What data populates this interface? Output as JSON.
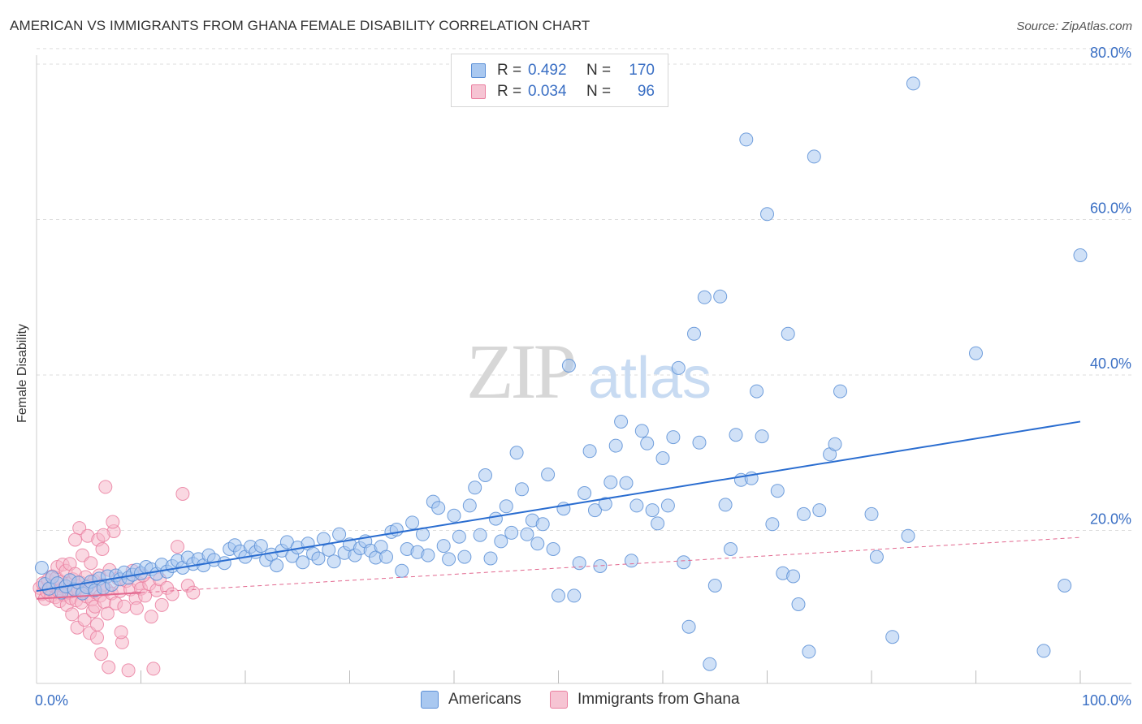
{
  "title": "AMERICAN VS IMMIGRANTS FROM GHANA FEMALE DISABILITY CORRELATION CHART",
  "source": "Source: ZipAtlas.com",
  "watermark": {
    "zip": "ZIP",
    "atlas": "atlas"
  },
  "legend": {
    "americans": {
      "r_label": "R =",
      "r_value": "0.492",
      "n_label": "N =",
      "n_value": "170"
    },
    "ghana": {
      "r_label": "R =",
      "r_value": "0.034",
      "n_label": "N =",
      "n_value": "96"
    }
  },
  "bottom_legend": {
    "americans": "Americans",
    "ghana": "Immigrants from Ghana"
  },
  "colors": {
    "americans_fill": "#a9c8f0",
    "americans_stroke": "#5b8fd6",
    "americans_line": "#2a6dd0",
    "ghana_fill": "#f6b8cb",
    "ghana_stroke": "#ea7fa0",
    "ghana_line": "#e2688f",
    "tick_label": "#3a6fc4",
    "grid": "#dddddd"
  },
  "chart_data": {
    "type": "scatter",
    "title": "AMERICAN VS IMMIGRANTS FROM GHANA FEMALE DISABILITY CORRELATION CHART",
    "xlabel": "",
    "ylabel": "Female Disability",
    "xlim": [
      0,
      100
    ],
    "ylim": [
      0,
      82
    ],
    "x_tick_labels": [
      {
        "value": 0,
        "label": "0.0%"
      },
      {
        "value": 100,
        "label": "100.0%"
      }
    ],
    "y_tick_labels": [
      {
        "value": 20,
        "label": "20.0%"
      },
      {
        "value": 40,
        "label": "40.0%"
      },
      {
        "value": 60,
        "label": "60.0%"
      },
      {
        "value": 80,
        "label": "80.0%"
      }
    ],
    "series": [
      {
        "name": "Americans",
        "trend": {
          "x": [
            0,
            100
          ],
          "y": [
            12.2,
            34.0
          ]
        },
        "points": [
          [
            0.5,
            15.2
          ],
          [
            0.8,
            13.1
          ],
          [
            1.2,
            12.5
          ],
          [
            1.5,
            14.0
          ],
          [
            2.0,
            13.2
          ],
          [
            2.4,
            12.0
          ],
          [
            2.8,
            12.8
          ],
          [
            3.2,
            13.6
          ],
          [
            3.6,
            12.4
          ],
          [
            4.0,
            13.3
          ],
          [
            4.4,
            11.9
          ],
          [
            4.8,
            12.7
          ],
          [
            5.2,
            13.4
          ],
          [
            5.6,
            12.3
          ],
          [
            6.0,
            13.8
          ],
          [
            6.4,
            12.6
          ],
          [
            6.8,
            14.1
          ],
          [
            7.2,
            13.0
          ],
          [
            7.6,
            14.2
          ],
          [
            8.0,
            13.7
          ],
          [
            8.4,
            14.6
          ],
          [
            8.8,
            13.9
          ],
          [
            9.2,
            14.3
          ],
          [
            9.6,
            14.9
          ],
          [
            10.0,
            14.5
          ],
          [
            10.5,
            15.3
          ],
          [
            11.0,
            15.0
          ],
          [
            11.5,
            14.4
          ],
          [
            12.0,
            15.6
          ],
          [
            12.5,
            14.7
          ],
          [
            13.0,
            15.4
          ],
          [
            13.5,
            16.1
          ],
          [
            14.0,
            15.2
          ],
          [
            14.5,
            16.5
          ],
          [
            15.0,
            15.7
          ],
          [
            15.5,
            16.3
          ],
          [
            16.0,
            15.5
          ],
          [
            16.5,
            16.8
          ],
          [
            17.0,
            16.2
          ],
          [
            18.0,
            15.8
          ],
          [
            18.5,
            17.6
          ],
          [
            19.0,
            18.1
          ],
          [
            19.5,
            17.3
          ],
          [
            20.0,
            16.6
          ],
          [
            20.5,
            17.9
          ],
          [
            21.0,
            17.2
          ],
          [
            21.5,
            18.0
          ],
          [
            22.0,
            16.2
          ],
          [
            22.5,
            16.9
          ],
          [
            23.0,
            15.5
          ],
          [
            23.5,
            17.4
          ],
          [
            24.0,
            18.5
          ],
          [
            24.5,
            16.7
          ],
          [
            25.0,
            17.8
          ],
          [
            25.5,
            15.9
          ],
          [
            26.0,
            18.3
          ],
          [
            26.5,
            17.0
          ],
          [
            27.0,
            16.4
          ],
          [
            27.5,
            18.9
          ],
          [
            28.0,
            17.5
          ],
          [
            28.5,
            16.0
          ],
          [
            29.0,
            19.5
          ],
          [
            29.5,
            17.1
          ],
          [
            30.0,
            18.2
          ],
          [
            30.5,
            16.8
          ],
          [
            31.0,
            17.7
          ],
          [
            31.5,
            18.6
          ],
          [
            32.0,
            17.4
          ],
          [
            32.5,
            16.5
          ],
          [
            33.0,
            17.9
          ],
          [
            33.5,
            16.6
          ],
          [
            34.0,
            19.8
          ],
          [
            34.5,
            20.1
          ],
          [
            35.0,
            14.8
          ],
          [
            35.5,
            17.6
          ],
          [
            36.0,
            21.0
          ],
          [
            36.5,
            17.2
          ],
          [
            37.0,
            19.5
          ],
          [
            37.5,
            16.8
          ],
          [
            38.0,
            23.7
          ],
          [
            38.5,
            22.9
          ],
          [
            39.0,
            18.0
          ],
          [
            39.5,
            16.3
          ],
          [
            40.0,
            21.9
          ],
          [
            40.5,
            19.2
          ],
          [
            41.0,
            16.6
          ],
          [
            41.5,
            23.2
          ],
          [
            42.0,
            25.5
          ],
          [
            42.5,
            19.4
          ],
          [
            43.0,
            27.1
          ],
          [
            43.5,
            16.4
          ],
          [
            44.0,
            21.5
          ],
          [
            44.5,
            18.6
          ],
          [
            45.0,
            23.1
          ],
          [
            45.5,
            19.7
          ],
          [
            46.0,
            30.0
          ],
          [
            46.5,
            25.3
          ],
          [
            47.0,
            19.5
          ],
          [
            47.5,
            21.3
          ],
          [
            48.0,
            18.3
          ],
          [
            48.5,
            20.8
          ],
          [
            49.0,
            27.2
          ],
          [
            49.5,
            17.6
          ],
          [
            50.0,
            11.6
          ],
          [
            50.5,
            22.8
          ],
          [
            51.0,
            41.2
          ],
          [
            51.5,
            11.6
          ],
          [
            52.0,
            15.8
          ],
          [
            52.5,
            24.8
          ],
          [
            53.0,
            30.2
          ],
          [
            53.5,
            22.6
          ],
          [
            54.0,
            15.4
          ],
          [
            54.5,
            23.4
          ],
          [
            55.0,
            26.2
          ],
          [
            55.5,
            30.9
          ],
          [
            56.0,
            34.0
          ],
          [
            56.5,
            26.1
          ],
          [
            57.0,
            16.1
          ],
          [
            57.5,
            23.2
          ],
          [
            58.0,
            32.8
          ],
          [
            58.5,
            31.2
          ],
          [
            59.0,
            22.6
          ],
          [
            59.5,
            20.9
          ],
          [
            60.0,
            29.3
          ],
          [
            60.5,
            23.2
          ],
          [
            61.0,
            32.0
          ],
          [
            61.5,
            40.9
          ],
          [
            62.0,
            15.9
          ],
          [
            62.5,
            7.6
          ],
          [
            63.0,
            45.3
          ],
          [
            63.5,
            31.3
          ],
          [
            64.0,
            50.0
          ],
          [
            64.5,
            2.8
          ],
          [
            65.0,
            12.9
          ],
          [
            65.5,
            50.1
          ],
          [
            66.0,
            23.3
          ],
          [
            66.5,
            17.6
          ],
          [
            67.0,
            32.3
          ],
          [
            67.5,
            26.5
          ],
          [
            68.0,
            70.3
          ],
          [
            68.5,
            26.7
          ],
          [
            69.0,
            37.9
          ],
          [
            69.5,
            32.1
          ],
          [
            70.0,
            60.7
          ],
          [
            70.5,
            20.8
          ],
          [
            71.0,
            25.1
          ],
          [
            71.5,
            14.5
          ],
          [
            72.0,
            45.3
          ],
          [
            72.5,
            14.1
          ],
          [
            73.0,
            10.5
          ],
          [
            73.5,
            22.1
          ],
          [
            74.0,
            4.4
          ],
          [
            74.5,
            68.1
          ],
          [
            75.0,
            22.6
          ],
          [
            76.0,
            29.8
          ],
          [
            76.5,
            31.1
          ],
          [
            77.0,
            37.9
          ],
          [
            80.0,
            22.1
          ],
          [
            80.5,
            16.6
          ],
          [
            82.0,
            6.3
          ],
          [
            83.5,
            19.3
          ],
          [
            84.0,
            77.5
          ],
          [
            90.0,
            42.8
          ],
          [
            96.5,
            4.5
          ],
          [
            98.5,
            12.9
          ],
          [
            100.0,
            55.4
          ]
        ]
      },
      {
        "name": "Immigrants from Ghana",
        "trend": {
          "x": [
            0,
            100
          ],
          "y": [
            11.2,
            19.1
          ]
        },
        "points": [
          [
            0.3,
            12.6
          ],
          [
            0.5,
            11.8
          ],
          [
            0.6,
            13.2
          ],
          [
            0.8,
            11.2
          ],
          [
            1.0,
            12.1
          ],
          [
            1.1,
            13.6
          ],
          [
            1.2,
            12.4
          ],
          [
            1.4,
            11.6
          ],
          [
            1.5,
            14.1
          ],
          [
            1.6,
            12.9
          ],
          [
            1.8,
            11.4
          ],
          [
            1.9,
            13.9
          ],
          [
            2.0,
            15.3
          ],
          [
            2.1,
            12.2
          ],
          [
            2.2,
            10.9
          ],
          [
            2.4,
            13.4
          ],
          [
            2.5,
            15.6
          ],
          [
            2.6,
            11.7
          ],
          [
            2.7,
            12.7
          ],
          [
            2.8,
            14.8
          ],
          [
            2.9,
            10.4
          ],
          [
            3.0,
            13.1
          ],
          [
            3.1,
            12.0
          ],
          [
            3.2,
            15.7
          ],
          [
            3.3,
            11.3
          ],
          [
            3.4,
            9.2
          ],
          [
            3.5,
            13.7
          ],
          [
            3.6,
            12.5
          ],
          [
            3.7,
            14.4
          ],
          [
            3.8,
            11.0
          ],
          [
            3.9,
            7.5
          ],
          [
            4.0,
            12.3
          ],
          [
            4.1,
            20.3
          ],
          [
            4.2,
            13.3
          ],
          [
            4.3,
            10.7
          ],
          [
            4.4,
            16.8
          ],
          [
            4.5,
            12.1
          ],
          [
            4.6,
            8.5
          ],
          [
            4.7,
            14.0
          ],
          [
            4.8,
            11.5
          ],
          [
            4.9,
            19.3
          ],
          [
            5.0,
            12.9
          ],
          [
            5.1,
            6.8
          ],
          [
            5.2,
            15.8
          ],
          [
            5.3,
            11.1
          ],
          [
            5.4,
            9.6
          ],
          [
            5.5,
            13.5
          ],
          [
            5.6,
            10.2
          ],
          [
            5.7,
            12.0
          ],
          [
            5.8,
            7.9
          ],
          [
            5.9,
            18.8
          ],
          [
            6.0,
            14.2
          ],
          [
            6.1,
            11.6
          ],
          [
            6.2,
            4.1
          ],
          [
            6.3,
            17.6
          ],
          [
            6.4,
            13.0
          ],
          [
            6.5,
            10.8
          ],
          [
            6.6,
            25.6
          ],
          [
            6.7,
            12.4
          ],
          [
            6.8,
            9.3
          ],
          [
            6.9,
            2.4
          ],
          [
            7.0,
            14.9
          ],
          [
            7.2,
            11.9
          ],
          [
            7.4,
            19.9
          ],
          [
            7.6,
            10.6
          ],
          [
            7.8,
            13.8
          ],
          [
            8.0,
            12.2
          ],
          [
            8.2,
            5.6
          ],
          [
            8.4,
            10.2
          ],
          [
            8.6,
            13.5
          ],
          [
            8.8,
            2.0
          ],
          [
            9.0,
            12.4
          ],
          [
            9.2,
            14.8
          ],
          [
            9.5,
            11.3
          ],
          [
            9.8,
            13.2
          ],
          [
            10.0,
            12.5
          ],
          [
            10.4,
            11.6
          ],
          [
            10.8,
            13.1
          ],
          [
            11.0,
            8.9
          ],
          [
            11.2,
            2.2
          ],
          [
            11.5,
            12.3
          ],
          [
            11.8,
            13.7
          ],
          [
            12.0,
            10.4
          ],
          [
            12.5,
            12.6
          ],
          [
            13.0,
            11.8
          ],
          [
            13.5,
            17.9
          ],
          [
            14.0,
            24.7
          ],
          [
            14.5,
            12.9
          ],
          [
            15.0,
            12.0
          ],
          [
            7.3,
            21.1
          ],
          [
            5.8,
            6.2
          ],
          [
            8.1,
            6.9
          ],
          [
            9.6,
            10.0
          ],
          [
            10.2,
            14.2
          ],
          [
            6.4,
            19.4
          ],
          [
            3.7,
            18.8
          ]
        ]
      }
    ]
  }
}
